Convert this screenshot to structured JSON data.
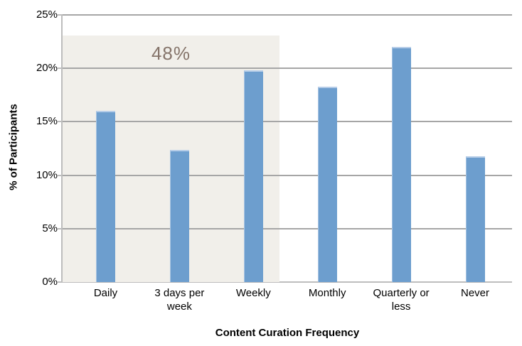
{
  "chart_data": {
    "type": "bar",
    "title": "",
    "xlabel": "Content Curation Frequency",
    "ylabel": "% of Participants",
    "categories": [
      "Daily",
      "3 days per week",
      "Weekly",
      "Monthly",
      "Quarterly or less",
      "Never"
    ],
    "values": [
      16.0,
      12.4,
      19.8,
      18.3,
      22.0,
      11.8
    ],
    "ylim": [
      0,
      25
    ],
    "yticks": {
      "values": [
        0,
        5,
        10,
        15,
        20,
        25
      ],
      "labels": [
        "0%",
        "5%",
        "10%",
        "15%",
        "20%",
        "25%"
      ]
    },
    "grid": "horizontal-major",
    "legend": "none",
    "annotation": {
      "label": "48%",
      "covers_categories": [
        "Daily",
        "3 days per week",
        "Weekly"
      ],
      "region_top_value": 23.1
    },
    "colors": {
      "bar": "#6D9ECE",
      "bar_edge": "#B6CDE8",
      "highlight_region": "#F1EFEA",
      "annotation_text": "#85746A",
      "gridline": "#A6A6A6",
      "axis_line": "#BDBDBD",
      "text": "#000000"
    }
  }
}
